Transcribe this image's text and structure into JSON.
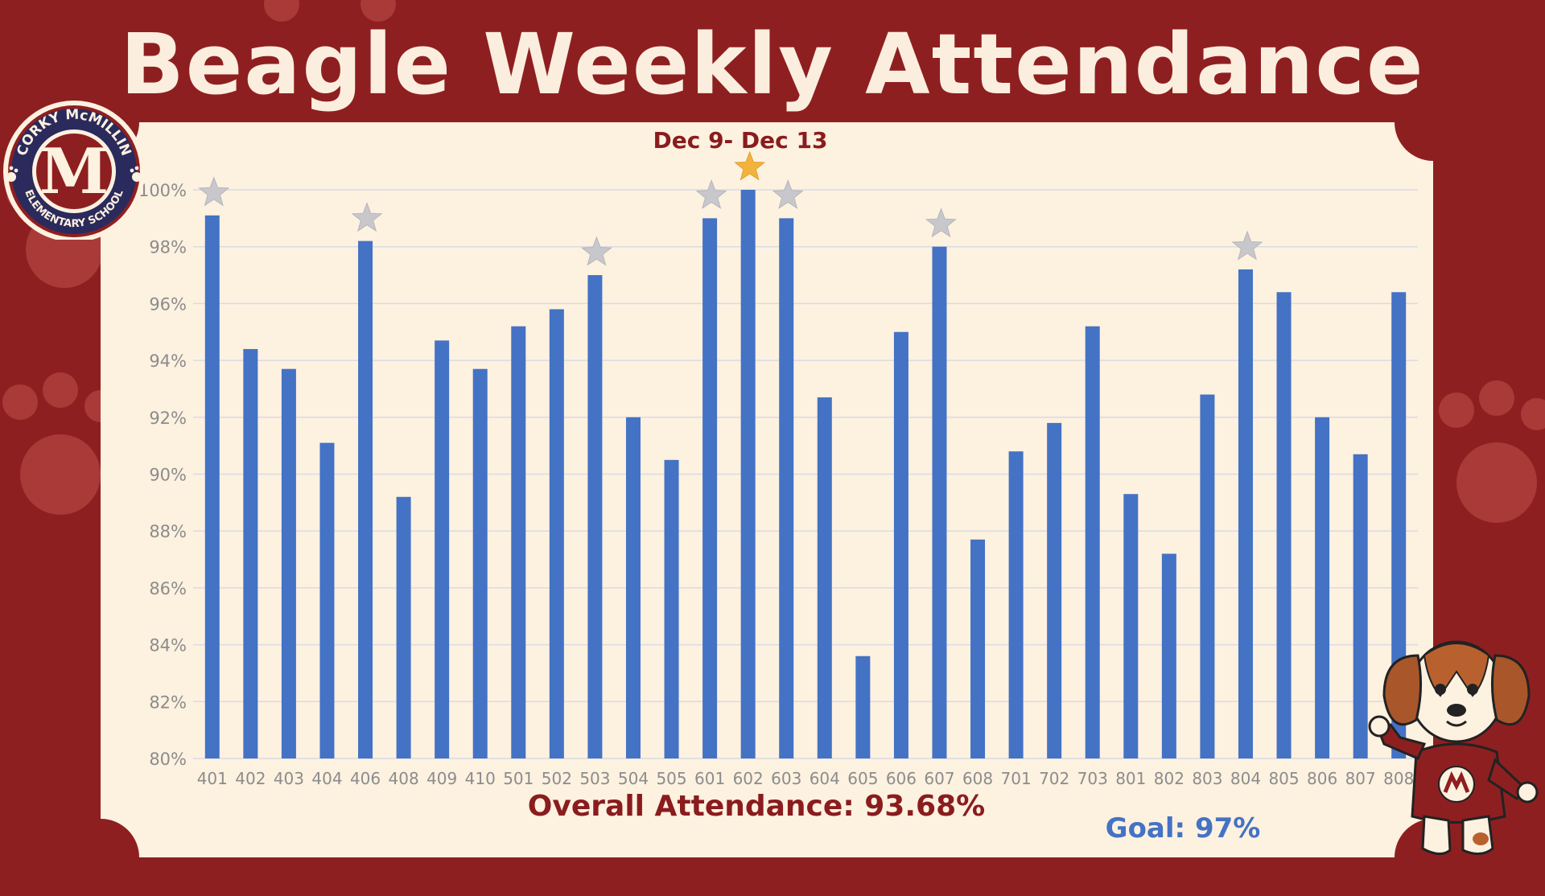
{
  "header": {
    "title": "Beagle Weekly Attendance",
    "subtitle": "Dec 9- Dec 13",
    "overall": "Overall Attendance: 93.68%",
    "goal": "Goal: 97%"
  },
  "logo": {
    "school_top": "CORKY McMILLIN",
    "school_bottom": "ELEMENTARY SCHOOL",
    "letter": "M"
  },
  "colors": {
    "background": "#8e1f20",
    "panel": "#fdf1e0",
    "bar": "#4472c4",
    "title": "#fbeede",
    "star_silver": "#c8c8cc",
    "star_gold": "#f2b33d"
  },
  "chart_data": {
    "type": "bar",
    "categories": [
      "401",
      "402",
      "403",
      "404",
      "406",
      "408",
      "409",
      "410",
      "501",
      "502",
      "503",
      "504",
      "505",
      "601",
      "602",
      "603",
      "604",
      "605",
      "606",
      "607",
      "608",
      "701",
      "702",
      "703",
      "801",
      "802",
      "803",
      "804",
      "805",
      "806",
      "807",
      "808"
    ],
    "values": [
      99.1,
      94.4,
      93.7,
      91.1,
      98.2,
      89.2,
      94.7,
      93.7,
      95.2,
      95.8,
      97.0,
      92.0,
      90.5,
      99.0,
      100,
      99.0,
      92.7,
      83.6,
      95.0,
      98.0,
      87.7,
      90.8,
      91.8,
      95.2,
      89.3,
      87.2,
      92.8,
      97.2,
      96.4,
      92.0,
      90.7,
      96.4
    ],
    "stars": [
      {
        "category": "401",
        "kind": "silver"
      },
      {
        "category": "406",
        "kind": "silver"
      },
      {
        "category": "503",
        "kind": "silver"
      },
      {
        "category": "601",
        "kind": "silver"
      },
      {
        "category": "602",
        "kind": "gold"
      },
      {
        "category": "603",
        "kind": "silver"
      },
      {
        "category": "607",
        "kind": "silver"
      },
      {
        "category": "804",
        "kind": "silver"
      }
    ],
    "yticks": [
      "80%",
      "82%",
      "84%",
      "86%",
      "88%",
      "90%",
      "92%",
      "94%",
      "96%",
      "98%",
      "100%"
    ],
    "ylim": [
      80,
      100
    ],
    "grid": true
  }
}
